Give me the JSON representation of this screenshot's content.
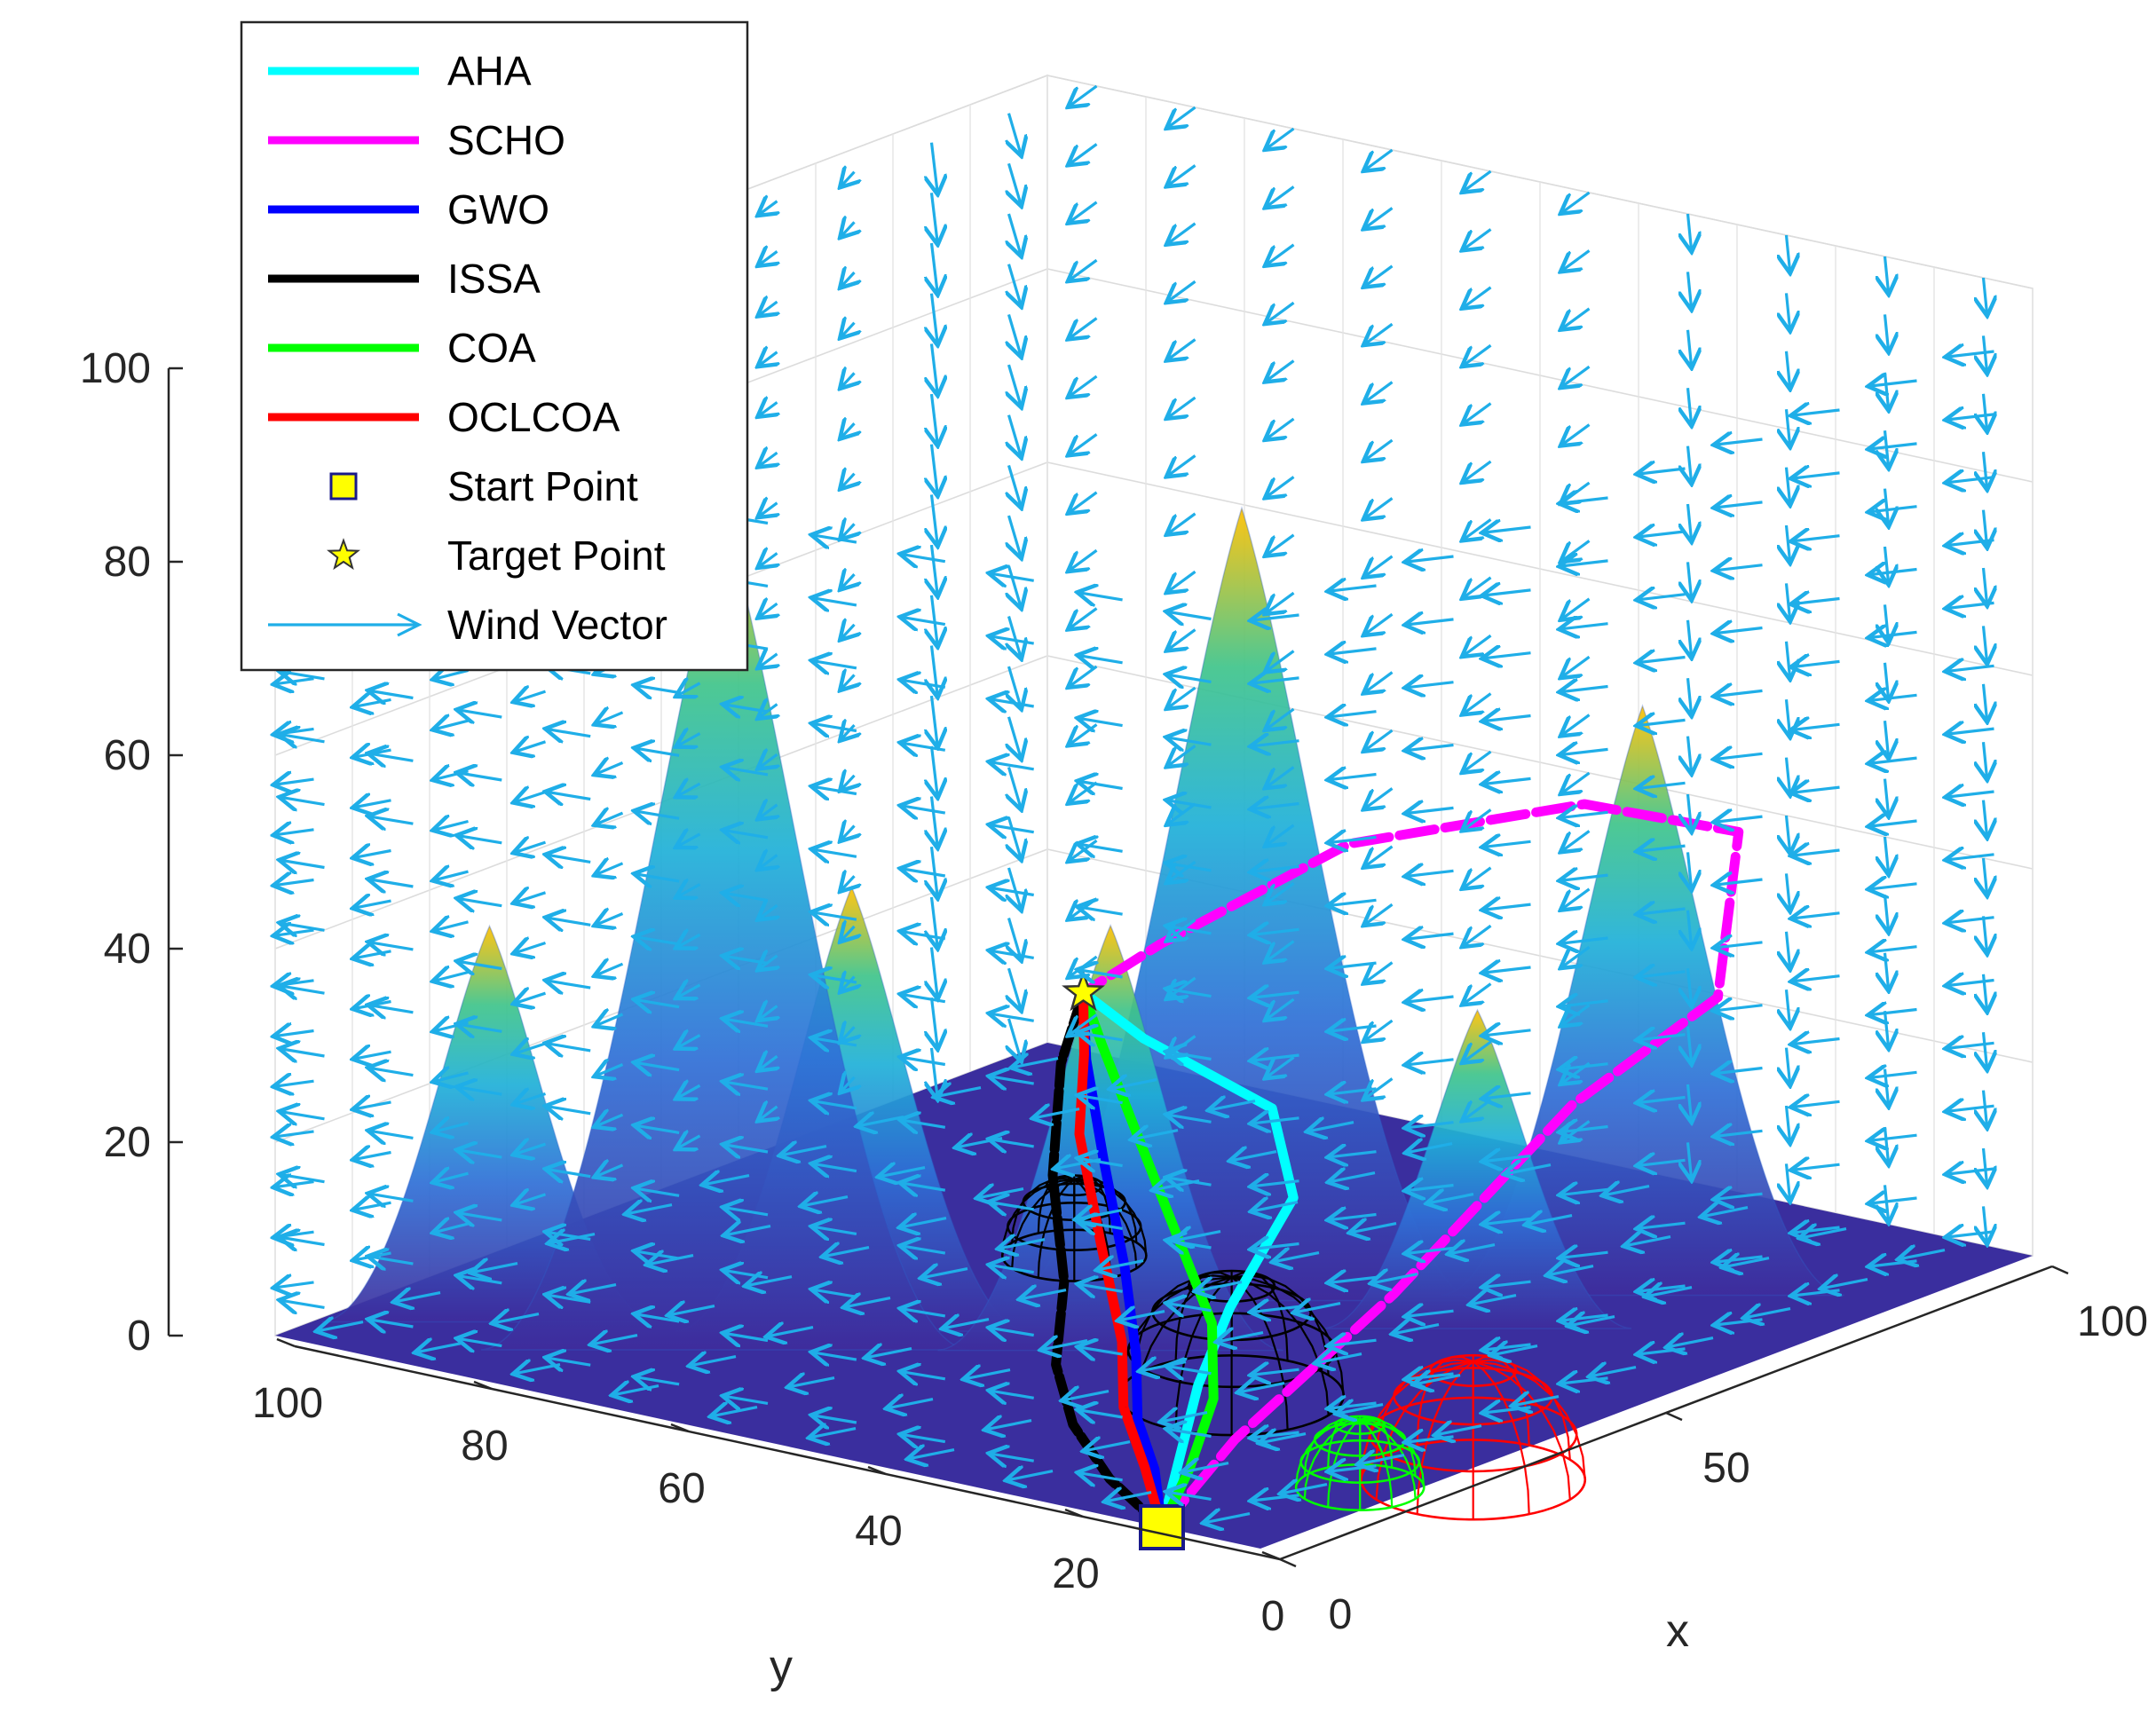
{
  "chart_data": {
    "type": "surface3d",
    "title": "",
    "xlabel": "x",
    "ylabel": "y",
    "zlabel": "",
    "xlim": [
      0,
      100
    ],
    "ylim": [
      0,
      100
    ],
    "zlim": [
      0,
      100
    ],
    "x_ticks": [
      "0",
      "50",
      "100"
    ],
    "y_ticks": [
      "0",
      "20",
      "40",
      "60",
      "80",
      "100"
    ],
    "z_ticks": [
      "0",
      "20",
      "40",
      "60",
      "80",
      "100"
    ],
    "grid": true,
    "legend_position": "top-left",
    "colors": {
      "wind": "#1FAEE8",
      "AHA": "#00FFFF",
      "SCHO": "#FF00FF",
      "GWO": "#0000FF",
      "ISSA": "#000000",
      "COA": "#00FF00",
      "OCLCOA": "#FF0000",
      "start": "#FFFF00",
      "target": "#FFFF00",
      "terrain_low": "#3E2C9C",
      "terrain_mid": "#1F9ED8",
      "terrain_high": "#FFC000"
    },
    "legend": [
      {
        "label": "AHA",
        "kind": "line",
        "color": "#00FFFF"
      },
      {
        "label": "SCHO",
        "kind": "line",
        "color": "#FF00FF"
      },
      {
        "label": "GWO",
        "kind": "line",
        "color": "#0000FF"
      },
      {
        "label": "ISSA",
        "kind": "line",
        "color": "#000000"
      },
      {
        "label": "COA",
        "kind": "line",
        "color": "#00FF00"
      },
      {
        "label": "OCLCOA",
        "kind": "line",
        "color": "#FF0000"
      },
      {
        "label": "Start Point",
        "kind": "square",
        "color": "#FFFF00"
      },
      {
        "label": "Target Point",
        "kind": "star",
        "color": "#FFFF00"
      },
      {
        "label": "Wind Vector",
        "kind": "arrow",
        "color": "#1FAEE8"
      }
    ],
    "terrain_peaks": [
      {
        "x": 20,
        "y": 70,
        "h": 85
      },
      {
        "x": 55,
        "y": 45,
        "h": 81
      },
      {
        "x": 75,
        "y": 20,
        "h": 60
      },
      {
        "x": 38,
        "y": 45,
        "h": 43
      },
      {
        "x": 15,
        "y": 90,
        "h": 40
      },
      {
        "x": 30,
        "y": 65,
        "h": 45
      },
      {
        "x": 60,
        "y": 25,
        "h": 32
      }
    ],
    "obstacles": [
      {
        "type": "hemisphere",
        "color": "#FF0000",
        "x": 25,
        "y": -2,
        "r": 14
      },
      {
        "type": "hemisphere",
        "color": "#00FF00",
        "x": 18,
        "y": 4,
        "r": 8
      },
      {
        "type": "hemisphere",
        "color": "#000000",
        "x": 32,
        "y": 28,
        "r": 14
      },
      {
        "type": "hemisphere",
        "color": "#000000",
        "x": 55,
        "y": 62,
        "r": 9
      }
    ],
    "start_point": {
      "x": 0,
      "y": 10,
      "z": 0
    },
    "target_point": {
      "x": 60,
      "y": 65,
      "z": 25
    },
    "series": [
      {
        "name": "AHA",
        "points": [
          [
            0,
            10,
            0
          ],
          [
            10,
            16,
            3
          ],
          [
            20,
            22,
            6
          ],
          [
            28,
            25,
            11
          ],
          [
            40,
            28,
            18
          ],
          [
            50,
            38,
            22
          ],
          [
            55,
            55,
            24
          ],
          [
            60,
            65,
            25
          ]
        ]
      },
      {
        "name": "SCHO",
        "points": [
          [
            0,
            10,
            0
          ],
          [
            12,
            12,
            5
          ],
          [
            30,
            10,
            15
          ],
          [
            48,
            6,
            30
          ],
          [
            72,
            10,
            33
          ],
          [
            90,
            22,
            42
          ],
          [
            93,
            40,
            40
          ],
          [
            88,
            60,
            33
          ],
          [
            70,
            65,
            27
          ],
          [
            60,
            65,
            25
          ]
        ]
      },
      {
        "name": "GWO",
        "points": [
          [
            0,
            10,
            0
          ],
          [
            8,
            17,
            2
          ],
          [
            16,
            25,
            3
          ],
          [
            26,
            33,
            5
          ],
          [
            36,
            42,
            9
          ],
          [
            46,
            52,
            15
          ],
          [
            54,
            60,
            21
          ],
          [
            60,
            65,
            25
          ]
        ]
      },
      {
        "name": "ISSA",
        "points": [
          [
            0,
            10,
            0
          ],
          [
            6,
            20,
            1
          ],
          [
            14,
            30,
            2
          ],
          [
            22,
            38,
            4
          ],
          [
            32,
            45,
            8
          ],
          [
            42,
            54,
            14
          ],
          [
            52,
            61,
            21
          ],
          [
            60,
            65,
            25
          ]
        ]
      },
      {
        "name": "COA",
        "points": [
          [
            0,
            10,
            0
          ],
          [
            10,
            15,
            2
          ],
          [
            22,
            22,
            4
          ],
          [
            32,
            30,
            7
          ],
          [
            42,
            42,
            12
          ],
          [
            50,
            52,
            17
          ],
          [
            56,
            60,
            22
          ],
          [
            60,
            65,
            25
          ]
        ]
      },
      {
        "name": "OCLCOA",
        "points": [
          [
            0,
            10,
            0
          ],
          [
            8,
            18,
            2
          ],
          [
            18,
            28,
            3
          ],
          [
            28,
            36,
            5
          ],
          [
            38,
            46,
            10
          ],
          [
            48,
            56,
            16
          ],
          [
            55,
            61,
            21
          ],
          [
            60,
            65,
            25
          ]
        ]
      }
    ]
  }
}
